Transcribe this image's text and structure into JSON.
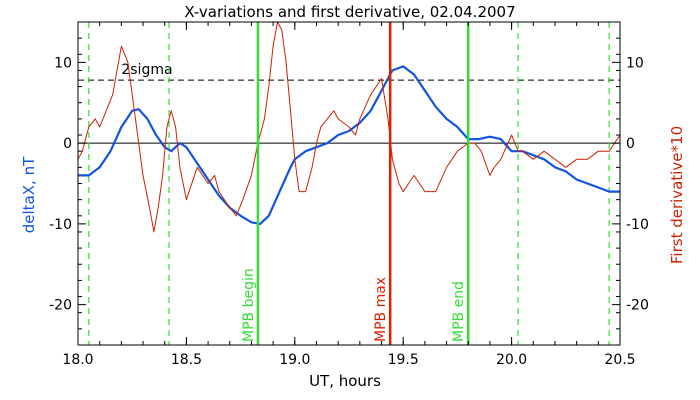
{
  "chart_data": {
    "type": "line",
    "title": "X-variations and first derivative, 02.04.2007",
    "xlabel": "UT, hours",
    "ylabel_left": "deltaX, nT",
    "ylabel_right": "First derivative*10",
    "xlim": [
      18.0,
      20.5
    ],
    "ylim": [
      -25,
      15
    ],
    "x_ticks": [
      18.0,
      18.5,
      19.0,
      19.5,
      20.0,
      20.5
    ],
    "x_tick_labels": [
      "18.0",
      "18.5",
      "19.0",
      "19.5",
      "20.0",
      "20.5"
    ],
    "y_ticks": [
      -20,
      -10,
      0,
      10
    ],
    "y_tick_labels_left": [
      "-20",
      "-10",
      "0",
      "10"
    ],
    "y_tick_labels_right": [
      "-20",
      "-10",
      "0",
      "10"
    ],
    "threshold": {
      "label": "2sigma",
      "value": 7.8
    },
    "zero_line": 0,
    "vertical_markers": [
      {
        "label": "MPB begin",
        "x": 18.83,
        "color": "#33dd33"
      },
      {
        "label": "MPB max",
        "x": 19.44,
        "color": "#dd2200"
      },
      {
        "label": "MPB end",
        "x": 19.8,
        "color": "#33dd33"
      }
    ],
    "dashed_markers": [
      18.05,
      18.42,
      20.03,
      20.45
    ],
    "series": [
      {
        "name": "deltaX, nT",
        "color": "#1155dd",
        "x": [
          18.0,
          18.05,
          18.1,
          18.15,
          18.2,
          18.25,
          18.28,
          18.32,
          18.36,
          18.4,
          18.43,
          18.47,
          18.5,
          18.55,
          18.6,
          18.65,
          18.7,
          18.75,
          18.8,
          18.84,
          18.88,
          18.93,
          18.98,
          19.0,
          19.05,
          19.1,
          19.15,
          19.2,
          19.25,
          19.3,
          19.35,
          19.4,
          19.45,
          19.5,
          19.55,
          19.6,
          19.65,
          19.7,
          19.75,
          19.8,
          19.85,
          19.9,
          19.95,
          20.0,
          20.05,
          20.1,
          20.15,
          20.2,
          20.25,
          20.3,
          20.35,
          20.4,
          20.45,
          20.5
        ],
        "y": [
          -4.0,
          -4.0,
          -3.0,
          -1.0,
          2.0,
          4.0,
          4.2,
          3.0,
          1.0,
          -0.5,
          -1.0,
          0.0,
          -0.5,
          -2.5,
          -4.5,
          -6.5,
          -8.0,
          -9.0,
          -9.8,
          -10.0,
          -9.0,
          -6.0,
          -3.0,
          -2.0,
          -1.0,
          -0.5,
          0.0,
          1.0,
          1.5,
          2.5,
          4.0,
          6.5,
          9.0,
          9.5,
          8.5,
          6.5,
          4.5,
          3.0,
          2.0,
          0.5,
          0.5,
          0.8,
          0.5,
          -1.0,
          -1.0,
          -1.5,
          -2.0,
          -3.0,
          -3.5,
          -4.5,
          -5.0,
          -5.5,
          -6.0,
          -6.0
        ]
      },
      {
        "name": "First derivative*10",
        "color": "#cc2200",
        "x": [
          18.0,
          18.02,
          18.05,
          18.08,
          18.1,
          18.13,
          18.16,
          18.18,
          18.2,
          18.23,
          18.25,
          18.28,
          18.3,
          18.33,
          18.35,
          18.37,
          18.39,
          18.41,
          18.43,
          18.45,
          18.47,
          18.5,
          18.55,
          18.6,
          18.63,
          18.65,
          18.7,
          18.73,
          18.76,
          18.8,
          18.83,
          18.86,
          18.88,
          18.9,
          18.92,
          18.94,
          18.96,
          18.98,
          19.0,
          19.02,
          19.05,
          19.08,
          19.1,
          19.12,
          19.15,
          19.18,
          19.2,
          19.25,
          19.28,
          19.3,
          19.35,
          19.4,
          19.43,
          19.45,
          19.48,
          19.5,
          19.55,
          19.6,
          19.65,
          19.7,
          19.75,
          19.8,
          19.83,
          19.86,
          19.9,
          19.92,
          19.95,
          20.0,
          20.03,
          20.05,
          20.1,
          20.15,
          20.2,
          20.25,
          20.3,
          20.35,
          20.4,
          20.45,
          20.5
        ],
        "y": [
          -2,
          -1,
          2,
          3,
          2,
          4,
          6,
          9,
          12,
          10,
          6,
          0,
          -4,
          -8,
          -11,
          -8,
          -4,
          2,
          4,
          2,
          -3,
          -7,
          -3,
          -5,
          -4,
          -6,
          -8,
          -9,
          -7,
          -4,
          0,
          3,
          7,
          12,
          15,
          14,
          10,
          4,
          -2,
          -6,
          -6,
          -3,
          0,
          2,
          3,
          4,
          3,
          2,
          1,
          3,
          6,
          8,
          3,
          -2,
          -5,
          -6,
          -4,
          -6,
          -6,
          -3,
          -1,
          0,
          0,
          -1,
          -4,
          -3,
          -2,
          1,
          -1,
          -1,
          -2,
          -1,
          -2,
          -3,
          -2,
          -2,
          -1,
          -1,
          1
        ]
      }
    ]
  }
}
